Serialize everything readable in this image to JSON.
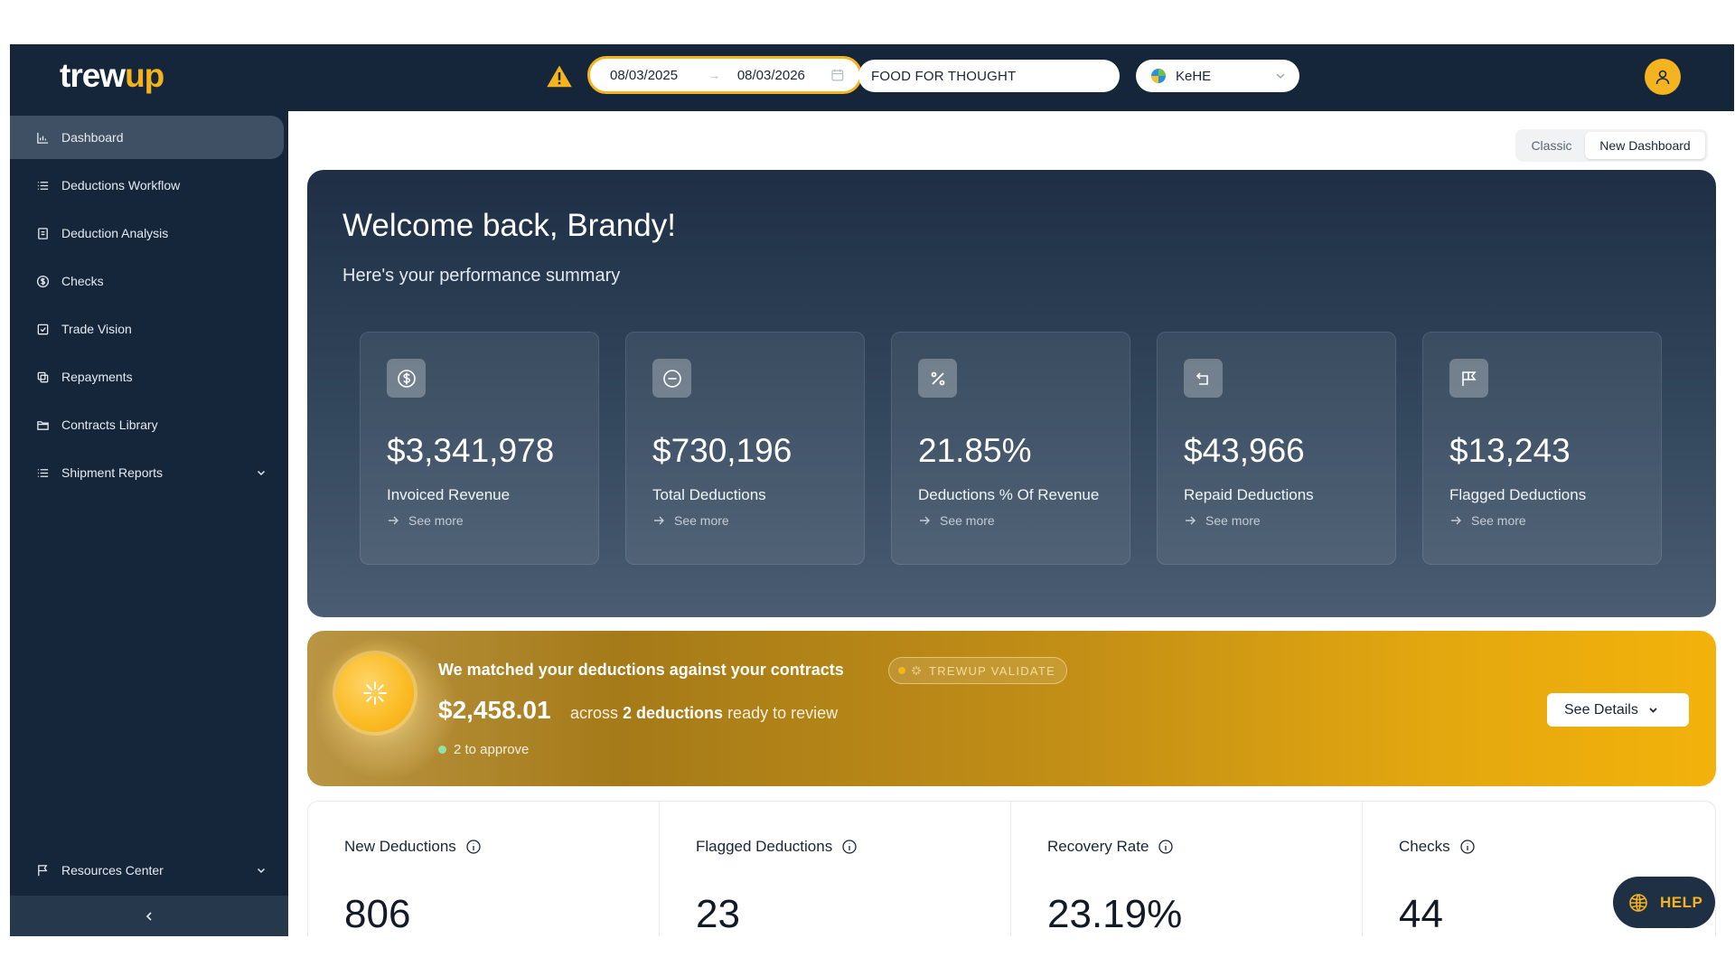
{
  "brand": {
    "logo_main": "trew",
    "logo_accent": "up",
    "accent_color": "#f4b420",
    "navy": "#15253a"
  },
  "header": {
    "warning_icon": "warning-triangle-icon",
    "date_start": "08/03/2025",
    "date_arrow": "→",
    "date_end": "08/03/2026",
    "company": "FOOD FOR THOUGHT",
    "distributor": "KeHE",
    "avatar_icon": "user-icon"
  },
  "sidebar": {
    "items": [
      {
        "label": "Dashboard",
        "icon": "chart-icon",
        "active": true
      },
      {
        "label": "Deductions Workflow",
        "icon": "list-icon"
      },
      {
        "label": "Deduction Analysis",
        "icon": "document-icon"
      },
      {
        "label": "Checks",
        "icon": "dollar-circle-icon"
      },
      {
        "label": "Trade Vision",
        "icon": "check-square-icon"
      },
      {
        "label": "Repayments",
        "icon": "copy-icon"
      },
      {
        "label": "Contracts Library",
        "icon": "folder-icon"
      },
      {
        "label": "Shipment Reports",
        "icon": "list-icon",
        "expandable": true
      }
    ],
    "footer_item": {
      "label": "Resources Center",
      "icon": "flag-icon",
      "expandable": true
    },
    "collapse_icon": "chevron-left-icon"
  },
  "view_toggle": {
    "classic": "Classic",
    "new": "New Dashboard",
    "selected": "New Dashboard"
  },
  "welcome": {
    "title": "Welcome back, Brandy!",
    "subtitle": "Here's your performance summary",
    "cards": [
      {
        "value": "$3,341,978",
        "label": "Invoiced Revenue",
        "more": "See more",
        "icon": "dollar-circle-icon"
      },
      {
        "value": "$730,196",
        "label": "Total Deductions",
        "more": "See more",
        "icon": "minus-circle-icon"
      },
      {
        "value": "21.85%",
        "label": "Deductions % Of Revenue",
        "more": "See more",
        "icon": "percent-icon"
      },
      {
        "value": "$43,966",
        "label": "Repaid Deductions",
        "more": "See more",
        "icon": "return-icon"
      },
      {
        "value": "$13,243",
        "label": "Flagged Deductions",
        "more": "See more",
        "icon": "flag-icon"
      }
    ]
  },
  "validate": {
    "title": "We matched your deductions against your contracts",
    "badge": "TREWUP VALIDATE",
    "amount": "$2,458.01",
    "desc_prefix": "across",
    "desc_bold": "2 deductions",
    "desc_suffix": "ready to review",
    "approve": "2 to approve",
    "button": "See Details"
  },
  "stats": [
    {
      "label": "New Deductions",
      "value": "806"
    },
    {
      "label": "Flagged Deductions",
      "value": "23"
    },
    {
      "label": "Recovery Rate",
      "value": "23.19%"
    },
    {
      "label": "Checks",
      "value": "44"
    }
  ],
  "help": {
    "label": "HELP",
    "icon": "help-globe-icon"
  }
}
